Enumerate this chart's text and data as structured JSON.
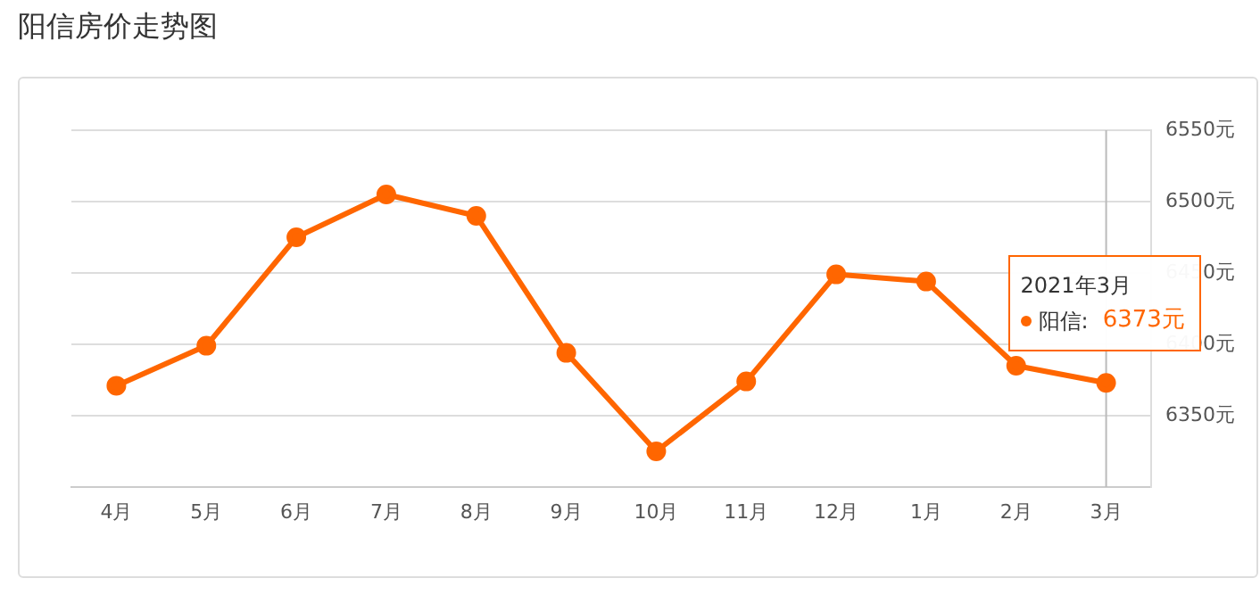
{
  "chart_data": {
    "type": "line",
    "title": "阳信房价走势图",
    "categories": [
      "4月",
      "5月",
      "6月",
      "7月",
      "8月",
      "9月",
      "10月",
      "11月",
      "12月",
      "1月",
      "2月",
      "3月"
    ],
    "series": [
      {
        "color": "#ff6600",
        "values": [
          6371,
          6399,
          6475,
          6505,
          6490,
          6394,
          6325,
          6374,
          6449,
          6444,
          6385,
          6373
        ],
        "value_labels": [
          null,
          null,
          null,
          null,
          null,
          null,
          null,
          null,
          null,
          null,
          null,
          "6373元"
        ]
      }
    ],
    "ylim": [
      6300,
      6550
    ],
    "yticks": [
      {
        "value": 6300,
        "label": null
      },
      {
        "value": 6350,
        "label": "6350元"
      },
      {
        "value": 6400,
        "label": "6400元"
      },
      {
        "value": 6450,
        "label": "6450元"
      },
      {
        "value": 6500,
        "label": "6500元"
      },
      {
        "value": 6550,
        "label": "6550元"
      }
    ],
    "grid": "y",
    "marker": "circle",
    "line_style": "solid",
    "legend": false,
    "ref_lines": [
      {
        "axis": "x",
        "value": "3月",
        "color": "#bbbbbb"
      }
    ],
    "annotations": [
      "2021年3月",
      "阳信:"
    ]
  }
}
